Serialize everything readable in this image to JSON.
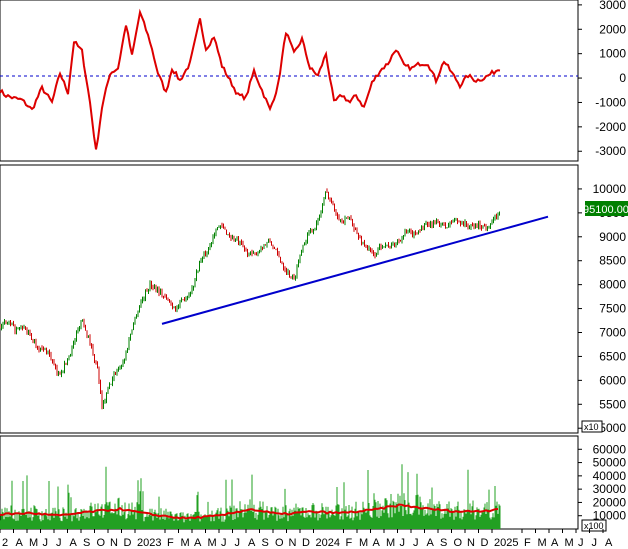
{
  "chart_data": [
    {
      "type": "line",
      "panel": "oscillator",
      "ylim": [
        -3400,
        3200
      ],
      "y_ticks": [
        3000,
        2000,
        1000,
        0,
        -1000,
        -2000,
        -3000
      ],
      "reference_line": 0,
      "series": [
        {
          "color": "#dd0000",
          "x_index": [
            0,
            5,
            12,
            22,
            32,
            42,
            52,
            60,
            68,
            74,
            82,
            90,
            96,
            102,
            110,
            118,
            126,
            132,
            140,
            150,
            158,
            166,
            172,
            180,
            190,
            200,
            206,
            214,
            222,
            230,
            238,
            246,
            254,
            262,
            270,
            278,
            286,
            294,
            302,
            310,
            318,
            326,
            334,
            342,
            350,
            356,
            364,
            372,
            380,
            388,
            396,
            404,
            412,
            420,
            428,
            436,
            444,
            452,
            460,
            468,
            476,
            484,
            492,
            500
          ],
          "values": [
            -500,
            -700,
            -800,
            -900,
            -1300,
            -400,
            -1000,
            200,
            -600,
            1500,
            1100,
            -1000,
            -3000,
            -1200,
            200,
            400,
            2200,
            900,
            2700,
            1500,
            200,
            -600,
            400,
            -100,
            600,
            2400,
            1200,
            1700,
            500,
            -100,
            -700,
            -800,
            300,
            -500,
            -1300,
            -300,
            1900,
            1000,
            1600,
            400,
            100,
            1000,
            -1000,
            -700,
            -1000,
            -700,
            -1200,
            -200,
            300,
            600,
            1200,
            500,
            400,
            600,
            600,
            -100,
            700,
            200,
            -300,
            100,
            -100,
            0,
            200,
            400
          ]
        }
      ]
    },
    {
      "type": "bar",
      "panel": "price",
      "ylim": [
        4900,
        10500
      ],
      "y_ticks": [
        10000,
        9500,
        9000,
        8500,
        8000,
        7500,
        7000,
        6500,
        6000,
        5500,
        5000
      ],
      "y_scale_note": "x10",
      "last_value_label": "95100.00",
      "price_series": {
        "x_index": [
          0,
          8,
          16,
          24,
          32,
          40,
          48,
          58,
          66,
          74,
          82,
          90,
          98,
          102,
          108,
          116,
          124,
          132,
          140,
          150,
          158,
          166,
          176,
          184,
          192,
          200,
          208,
          216,
          222,
          230,
          238,
          246,
          254,
          262,
          270,
          278,
          286,
          294,
          302,
          310,
          318,
          326,
          334,
          342,
          350,
          358,
          366,
          374,
          382,
          390,
          398,
          406,
          414,
          422,
          430,
          438,
          446,
          454,
          462,
          470,
          478,
          486,
          494,
          500
        ],
        "values": [
          7150,
          7200,
          7050,
          7100,
          6850,
          6650,
          6600,
          6100,
          6350,
          6800,
          7300,
          6800,
          6200,
          5400,
          5800,
          6200,
          6400,
          7100,
          7600,
          8000,
          7900,
          7700,
          7500,
          7700,
          7900,
          8500,
          8700,
          9200,
          9200,
          9000,
          8900,
          8700,
          8600,
          8800,
          8900,
          8600,
          8300,
          8100,
          8800,
          9100,
          9300,
          9950,
          9600,
          9300,
          9400,
          9000,
          8800,
          8600,
          8850,
          8800,
          8900,
          9100,
          9050,
          9200,
          9250,
          9300,
          9200,
          9350,
          9300,
          9200,
          9250,
          9200,
          9350,
          9500
        ]
      },
      "trendline": {
        "color": "#0000cc",
        "x_index": [
          162,
          548
        ],
        "values": [
          7180,
          9420
        ]
      }
    },
    {
      "type": "bar",
      "panel": "volume",
      "ylim": [
        0,
        70000
      ],
      "y_ticks": [
        60000,
        50000,
        40000,
        30000,
        20000,
        10000
      ],
      "y_scale_note": "x100",
      "volume_average": {
        "color": "#dd0000",
        "x_index": [
          0,
          30,
          60,
          90,
          120,
          150,
          185,
          220,
          250,
          280,
          310,
          340,
          370,
          400,
          430,
          460,
          490,
          500
        ],
        "values": [
          11000,
          12000,
          10000,
          13000,
          15000,
          11000,
          8000,
          10000,
          15000,
          11000,
          13000,
          12000,
          14000,
          18000,
          15000,
          13000,
          14000,
          16000
        ]
      }
    }
  ],
  "x_axis": {
    "labels": [
      "2",
      "A",
      "M",
      "J",
      "J",
      "A",
      "S",
      "O",
      "N",
      "D",
      "2023",
      "F",
      "M",
      "A",
      "M",
      "J",
      "J",
      "A",
      "S",
      "O",
      "N",
      "D",
      "2024",
      "F",
      "M",
      "A",
      "M",
      "J",
      "J",
      "A",
      "S",
      "O",
      "N",
      "D",
      "2025",
      "F",
      "M",
      "A",
      "M",
      "J",
      "J",
      "A"
    ]
  }
}
